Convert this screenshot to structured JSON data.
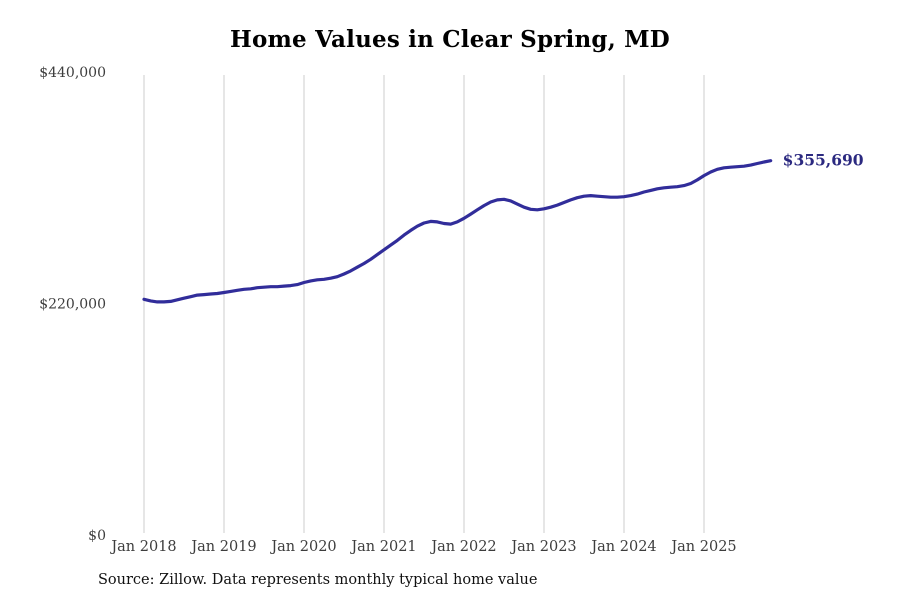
{
  "title": "Home Values in Clear Spring, MD",
  "source_note": "Source: Zillow. Data represents monthly typical home value",
  "colors": {
    "line": "#312d9a",
    "latest_label": "#2b2980",
    "grid": "#cccccc",
    "tick_text": "#3d3d3d",
    "title_text": "#000000",
    "background": "#ffffff"
  },
  "chart_data": {
    "type": "line",
    "title": "Home Values in Clear Spring, MD",
    "series_name": "Typical home value (monthly)",
    "start_month": "2018-01",
    "frequency": "monthly",
    "latest_value": 355690,
    "latest_value_label": "$355,690",
    "xlabel": "",
    "ylabel": "",
    "ylim": [
      0,
      440000
    ],
    "grid": "vertical-only",
    "legend": "none",
    "x_tick_labels": [
      "Jan 2018",
      "Jan 2019",
      "Jan 2020",
      "Jan 2021",
      "Jan 2022",
      "Jan 2023",
      "Jan 2024",
      "Jan 2025"
    ],
    "y_ticks": [
      {
        "label": "$0",
        "value": 0
      },
      {
        "label": "$220,000",
        "value": 220000
      },
      {
        "label": "$440,000",
        "value": 440000
      }
    ],
    "values": [
      224000,
      222500,
      221500,
      221500,
      222000,
      223500,
      225000,
      226500,
      228000,
      228500,
      229000,
      229500,
      230500,
      231500,
      232500,
      233500,
      234000,
      235000,
      235500,
      236000,
      236000,
      236500,
      237000,
      238000,
      240000,
      241500,
      242500,
      243000,
      244000,
      245500,
      248000,
      251000,
      254500,
      258000,
      262000,
      266500,
      271000,
      275500,
      280000,
      285000,
      289500,
      293500,
      296500,
      298000,
      297500,
      296000,
      295500,
      297500,
      301000,
      305000,
      309000,
      313000,
      316500,
      318500,
      319000,
      317500,
      314500,
      311500,
      309500,
      309000,
      310000,
      311500,
      313500,
      316000,
      318500,
      320500,
      322000,
      322500,
      322000,
      321500,
      321000,
      321000,
      321500,
      322500,
      324000,
      326000,
      327500,
      329000,
      330000,
      330500,
      331000,
      332000,
      334000,
      337500,
      341500,
      345000,
      347500,
      349000,
      349500,
      350000,
      350500,
      351500,
      353000,
      354500,
      355690
    ]
  }
}
